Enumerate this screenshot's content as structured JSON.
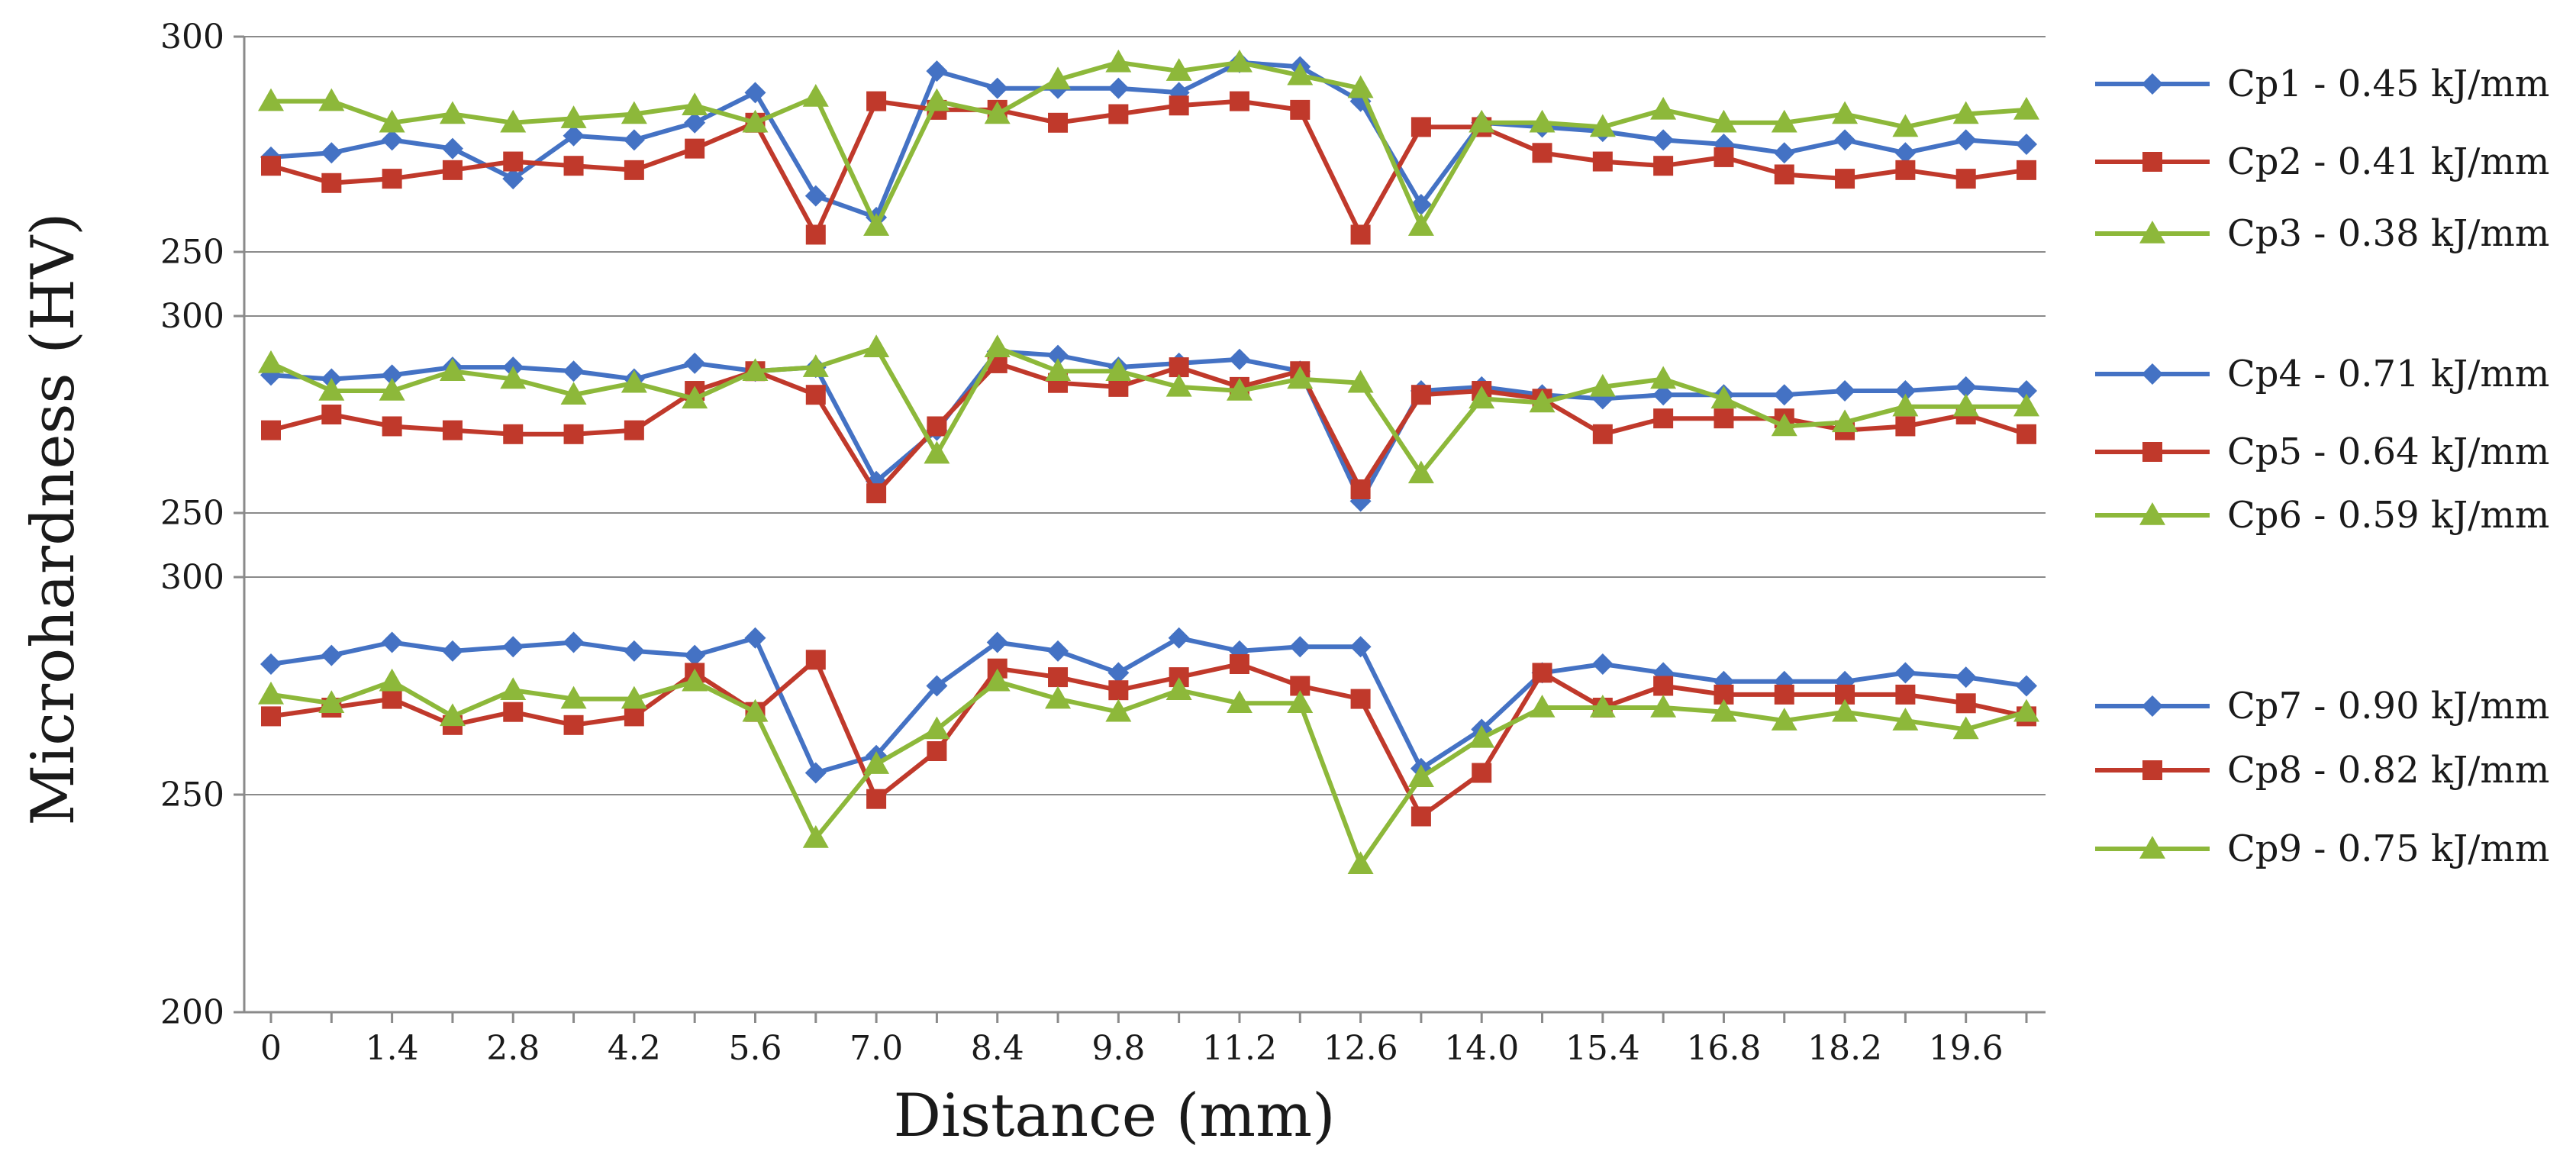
{
  "chart_data": {
    "type": "line",
    "xlabel": "Distance (mm)",
    "ylabel": "Microhardness (HV)",
    "x_tick_labels": [
      "0",
      "1.4",
      "2.8",
      "4.2",
      "5.6",
      "7.0",
      "8.4",
      "9.8",
      "11.2",
      "12.6",
      "14.0",
      "15.4",
      "16.8",
      "18.2",
      "19.6"
    ],
    "x": [
      0,
      0.7,
      1.4,
      2.1,
      2.8,
      3.5,
      4.2,
      4.9,
      5.6,
      6.3,
      7.0,
      7.7,
      8.4,
      9.1,
      9.8,
      10.5,
      11.2,
      11.9,
      12.6,
      13.3,
      14.0,
      14.7,
      15.4,
      16.1,
      16.8,
      17.5,
      18.2,
      18.9,
      19.6,
      20.3
    ],
    "xlim": [
      0,
      20.3
    ],
    "colors": {
      "blue": "#4472c4",
      "red": "#c0392b",
      "green": "#8db83a",
      "axis": "#8a8a8a"
    },
    "panels": [
      {
        "ylim": [
          250,
          300
        ],
        "y_tick_labels": [
          "250",
          "300"
        ],
        "series": [
          {
            "name": "Cp1 - 0.45 kJ/mm",
            "marker": "diamond",
            "color": "#4472c4",
            "values": [
              272,
              273,
              276,
              274,
              267,
              277,
              276,
              280,
              287,
              263,
              258,
              292,
              288,
              288,
              288,
              287,
              294,
              293,
              285,
              261,
              280,
              279,
              278,
              276,
              275,
              273,
              276,
              273,
              276,
              275
            ]
          },
          {
            "name": "Cp2 - 0.41 kJ/mm",
            "marker": "square",
            "color": "#c0392b",
            "values": [
              270,
              266,
              267,
              269,
              271,
              270,
              269,
              274,
              280,
              254,
              285,
              283,
              283,
              280,
              282,
              284,
              285,
              283,
              254,
              279,
              279,
              273,
              271,
              270,
              272,
              268,
              267,
              269,
              267,
              269
            ]
          },
          {
            "name": "Cp3 - 0.38 kJ/mm",
            "marker": "triangle",
            "color": "#8db83a",
            "values": [
              285,
              285,
              280,
              282,
              280,
              281,
              282,
              284,
              280,
              286,
              256,
              285,
              282,
              290,
              294,
              292,
              294,
              291,
              288,
              256,
              280,
              280,
              279,
              283,
              280,
              280,
              282,
              279,
              282,
              283
            ]
          }
        ]
      },
      {
        "ylim": [
          250,
          300
        ],
        "y_tick_labels": [
          "250",
          "300"
        ],
        "series": [
          {
            "name": "Cp4 - 0.71 kJ/mm",
            "marker": "diamond",
            "color": "#4472c4",
            "values": [
              285,
              284,
              285,
              287,
              287,
              286,
              284,
              288,
              286,
              287,
              258,
              271,
              291,
              290,
              287,
              288,
              289,
              286,
              253,
              281,
              282,
              280,
              279,
              280,
              280,
              280,
              281,
              281,
              282,
              281
            ]
          },
          {
            "name": "Cp5 - 0.64 kJ/mm",
            "marker": "square",
            "color": "#c0392b",
            "values": [
              271,
              275,
              272,
              271,
              270,
              270,
              271,
              281,
              286,
              280,
              255,
              272,
              288,
              283,
              282,
              287,
              282,
              286,
              256,
              280,
              281,
              279,
              270,
              274,
              274,
              274,
              271,
              272,
              275,
              270
            ]
          },
          {
            "name": "Cp6 - 0.59 kJ/mm",
            "marker": "triangle",
            "color": "#8db83a",
            "values": [
              288,
              281,
              281,
              286,
              284,
              280,
              283,
              279,
              286,
              287,
              292,
              265,
              292,
              286,
              286,
              282,
              281,
              284,
              283,
              260,
              279,
              278,
              282,
              284,
              279,
              272,
              273,
              277,
              277,
              277
            ]
          }
        ]
      },
      {
        "ylim": [
          200,
          300
        ],
        "y_tick_labels": [
          "200",
          "250",
          "300"
        ],
        "series": [
          {
            "name": "Cp7 - 0.90 kJ/mm",
            "marker": "diamond",
            "color": "#4472c4",
            "values": [
              280,
              282,
              285,
              283,
              284,
              285,
              283,
              282,
              286,
              255,
              259,
              275,
              285,
              283,
              278,
              286,
              283,
              284,
              284,
              256,
              265,
              278,
              280,
              278,
              276,
              276,
              276,
              278,
              277,
              275
            ]
          },
          {
            "name": "Cp8 - 0.82 kJ/mm",
            "marker": "square",
            "color": "#c0392b",
            "values": [
              268,
              270,
              272,
              266,
              269,
              266,
              268,
              278,
              269,
              281,
              249,
              260,
              279,
              277,
              274,
              277,
              280,
              275,
              272,
              245,
              255,
              278,
              270,
              275,
              273,
              273,
              273,
              273,
              271,
              268
            ]
          },
          {
            "name": "Cp9 - 0.75 kJ/mm",
            "marker": "triangle",
            "color": "#8db83a",
            "values": [
              273,
              271,
              276,
              268,
              274,
              272,
              272,
              276,
              269,
              240,
              257,
              265,
              276,
              272,
              269,
              274,
              271,
              271,
              234,
              254,
              263,
              270,
              270,
              270,
              269,
              267,
              269,
              267,
              265,
              269
            ]
          }
        ]
      }
    ]
  }
}
